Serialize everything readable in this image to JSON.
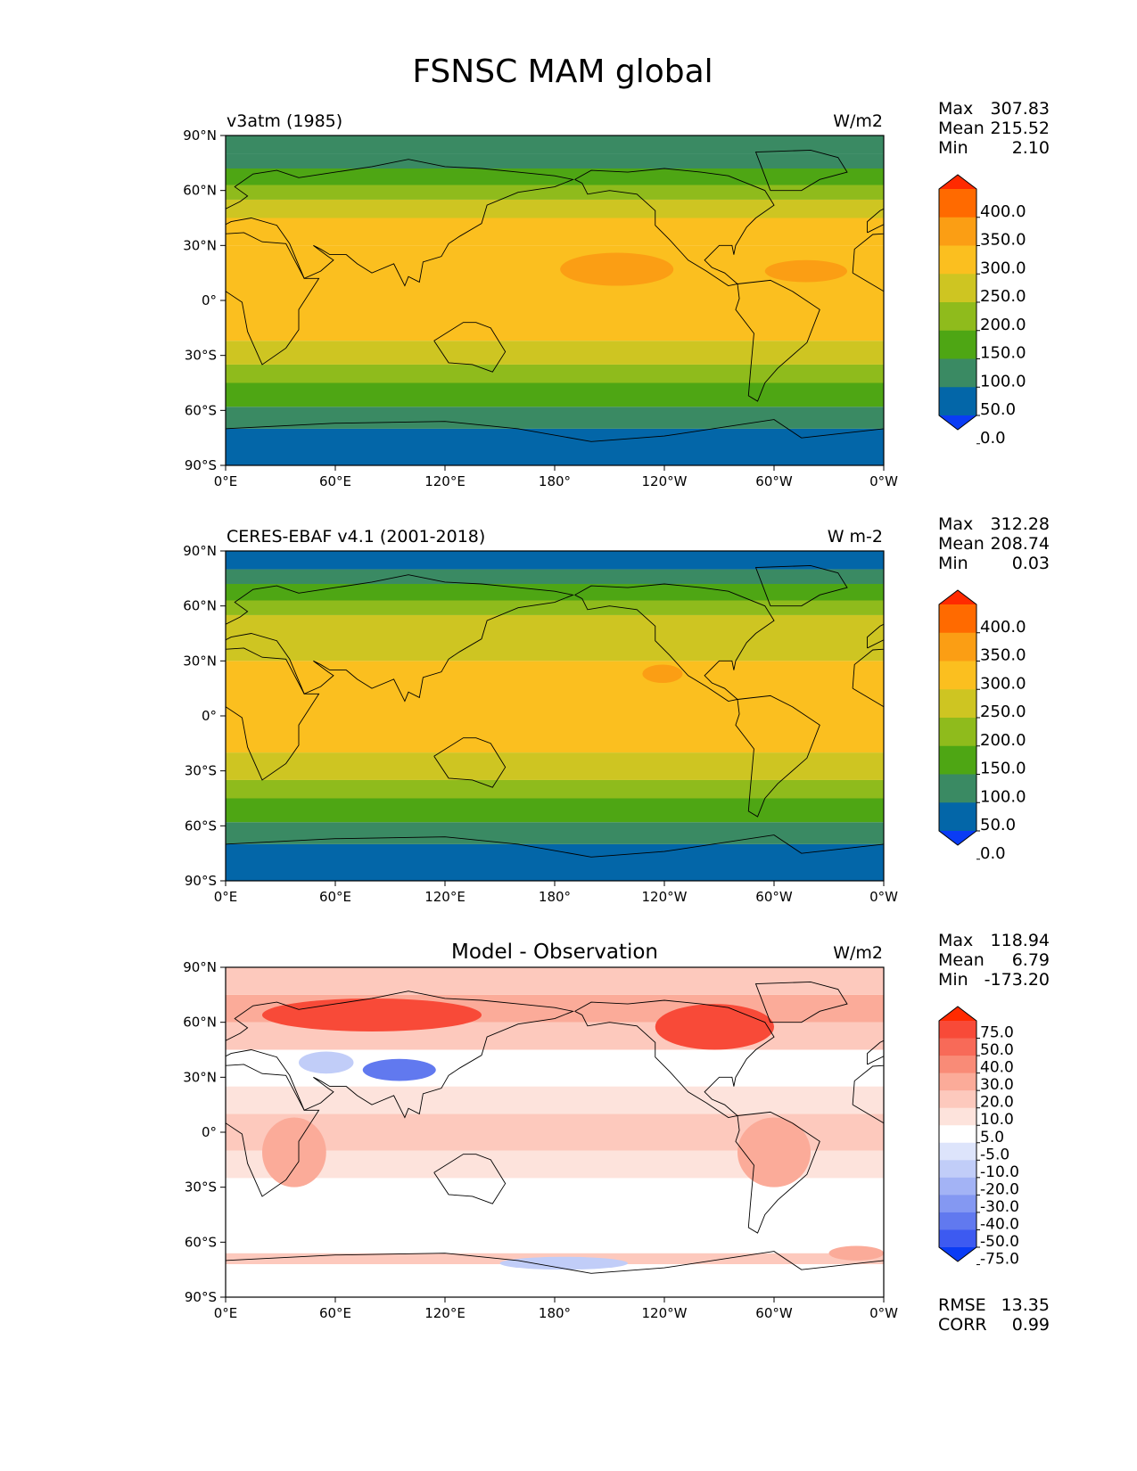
{
  "figure": {
    "title": "FSNSC MAM global"
  },
  "chart_data": [
    {
      "type": "heatmap",
      "name": "model",
      "left_title": "v3atm (1985)",
      "center_title": "",
      "units": "W/m2",
      "xlim": [
        0,
        360
      ],
      "ylim": [
        -90,
        90
      ],
      "x_ticks": [
        "0°E",
        "60°E",
        "120°E",
        "180°",
        "120°W",
        "60°W",
        "0°W"
      ],
      "y_ticks": [
        "90°N",
        "60°N",
        "30°N",
        "0°",
        "30°S",
        "60°S",
        "90°S"
      ],
      "stats": {
        "labels": [
          "Max",
          "Mean",
          "Min"
        ],
        "values": [
          "307.83",
          "215.52",
          "2.10"
        ]
      },
      "colorbar": {
        "levels": [
          "400.0",
          "350.0",
          "300.0",
          "250.0",
          "200.0",
          "150.0",
          "100.0",
          "50.0",
          "0.0"
        ],
        "colors": [
          "#ff2a00",
          "#ff6a00",
          "#fb9e14",
          "#fbbf1f",
          "#cec522",
          "#8fbb1c",
          "#4ea614",
          "#3a8a63",
          "#0366a8",
          "#0a3cf5"
        ]
      },
      "lat_bands": [
        {
          "lat": [
            -90,
            -70
          ],
          "v": 25
        },
        {
          "lat": [
            -70,
            -58
          ],
          "v": 75
        },
        {
          "lat": [
            -58,
            -45
          ],
          "v": 125
        },
        {
          "lat": [
            -45,
            -35
          ],
          "v": 175
        },
        {
          "lat": [
            -35,
            -22
          ],
          "v": 225
        },
        {
          "lat": [
            -22,
            30
          ],
          "v": 275
        },
        {
          "lat": [
            30,
            45
          ],
          "v": 275
        },
        {
          "lat": [
            45,
            55
          ],
          "v": 225
        },
        {
          "lat": [
            55,
            63
          ],
          "v": 175
        },
        {
          "lat": [
            63,
            72
          ],
          "v": 125
        },
        {
          "lat": [
            72,
            80
          ],
          "v": 75
        },
        {
          "lat": [
            80,
            90
          ],
          "v": 75
        }
      ],
      "hotspots": [
        {
          "lon": [
            183,
            245
          ],
          "lat": [
            8,
            26
          ],
          "v": 325
        },
        {
          "lon": [
            295,
            340
          ],
          "lat": [
            10,
            22
          ],
          "v": 325
        }
      ]
    },
    {
      "type": "heatmap",
      "name": "observation",
      "left_title": "CERES-EBAF v4.1 (2001-2018)",
      "center_title": "",
      "units": "W m-2",
      "xlim": [
        0,
        360
      ],
      "ylim": [
        -90,
        90
      ],
      "x_ticks": [
        "0°E",
        "60°E",
        "120°E",
        "180°",
        "120°W",
        "60°W",
        "0°W"
      ],
      "y_ticks": [
        "90°N",
        "60°N",
        "30°N",
        "0°",
        "30°S",
        "60°S",
        "90°S"
      ],
      "stats": {
        "labels": [
          "Max",
          "Mean",
          "Min"
        ],
        "values": [
          "312.28",
          "208.74",
          "0.03"
        ]
      },
      "colorbar": {
        "levels": [
          "400.0",
          "350.0",
          "300.0",
          "250.0",
          "200.0",
          "150.0",
          "100.0",
          "50.0",
          "0.0"
        ],
        "colors": [
          "#ff2a00",
          "#ff6a00",
          "#fb9e14",
          "#fbbf1f",
          "#cec522",
          "#8fbb1c",
          "#4ea614",
          "#3a8a63",
          "#0366a8",
          "#0a3cf5"
        ]
      },
      "lat_bands": [
        {
          "lat": [
            -90,
            -70
          ],
          "v": 25
        },
        {
          "lat": [
            -70,
            -58
          ],
          "v": 75
        },
        {
          "lat": [
            -58,
            -45
          ],
          "v": 125
        },
        {
          "lat": [
            -45,
            -35
          ],
          "v": 175
        },
        {
          "lat": [
            -35,
            -20
          ],
          "v": 225
        },
        {
          "lat": [
            -20,
            30
          ],
          "v": 275
        },
        {
          "lat": [
            30,
            45
          ],
          "v": 225
        },
        {
          "lat": [
            45,
            55
          ],
          "v": 225
        },
        {
          "lat": [
            55,
            63
          ],
          "v": 175
        },
        {
          "lat": [
            63,
            72
          ],
          "v": 125
        },
        {
          "lat": [
            72,
            80
          ],
          "v": 75
        },
        {
          "lat": [
            80,
            90
          ],
          "v": 25
        }
      ],
      "hotspots": [
        {
          "lon": [
            228,
            250
          ],
          "lat": [
            18,
            28
          ],
          "v": 325
        }
      ]
    },
    {
      "type": "heatmap",
      "name": "difference",
      "left_title": "",
      "center_title": "Model - Observation",
      "units": "W/m2",
      "xlim": [
        0,
        360
      ],
      "ylim": [
        -90,
        90
      ],
      "x_ticks": [
        "0°E",
        "60°E",
        "120°E",
        "180°",
        "120°W",
        "60°W",
        "0°W"
      ],
      "y_ticks": [
        "90°N",
        "60°N",
        "30°N",
        "0°",
        "30°S",
        "60°S",
        "90°S"
      ],
      "stats": {
        "labels": [
          "Max",
          "Mean",
          "Min"
        ],
        "values": [
          "118.94",
          "6.79",
          "-173.20"
        ]
      },
      "extra_stats": {
        "labels": [
          "RMSE",
          "CORR"
        ],
        "values": [
          "13.35",
          "0.99"
        ]
      },
      "colorbar": {
        "levels": [
          "75.0",
          "50.0",
          "40.0",
          "30.0",
          "20.0",
          "10.0",
          "5.0",
          "-5.0",
          "-10.0",
          "-20.0",
          "-30.0",
          "-40.0",
          "-50.0",
          "-75.0"
        ],
        "colors": [
          "#ff2a00",
          "#f84a38",
          "#f86a58",
          "#f98b77",
          "#fbab99",
          "#fdc9bd",
          "#fde3dc",
          "#ffffff",
          "#dde4fb",
          "#c1cdf8",
          "#a3b3f5",
          "#8498f2",
          "#6179ef",
          "#3d5af1",
          "#0a3cf5"
        ]
      },
      "lat_bands": [
        {
          "lat": [
            -90,
            -72
          ],
          "v": 0
        },
        {
          "lat": [
            -72,
            -66
          ],
          "v": 15
        },
        {
          "lat": [
            -66,
            -25
          ],
          "v": 0
        },
        {
          "lat": [
            -25,
            -10
          ],
          "v": 7
        },
        {
          "lat": [
            -10,
            10
          ],
          "v": 12
        },
        {
          "lat": [
            10,
            25
          ],
          "v": 7
        },
        {
          "lat": [
            25,
            45
          ],
          "v": 0
        },
        {
          "lat": [
            45,
            60
          ],
          "v": 12
        },
        {
          "lat": [
            60,
            75
          ],
          "v": 25
        },
        {
          "lat": [
            75,
            90
          ],
          "v": 12
        }
      ],
      "hotspots": [
        {
          "lon": [
            20,
            140
          ],
          "lat": [
            55,
            73
          ],
          "v": 55
        },
        {
          "lon": [
            235,
            300
          ],
          "lat": [
            45,
            70
          ],
          "v": 55
        },
        {
          "lon": [
            75,
            115
          ],
          "lat": [
            28,
            40
          ],
          "v": -45
        },
        {
          "lon": [
            40,
            70
          ],
          "lat": [
            32,
            44
          ],
          "v": -12
        },
        {
          "lon": [
            20,
            55
          ],
          "lat": [
            -30,
            8
          ],
          "v": 25
        },
        {
          "lon": [
            280,
            320
          ],
          "lat": [
            -30,
            8
          ],
          "v": 25
        },
        {
          "lon": [
            150,
            220
          ],
          "lat": [
            -75,
            -68
          ],
          "v": -12
        },
        {
          "lon": [
            330,
            360
          ],
          "lat": [
            -70,
            -62
          ],
          "v": 25
        }
      ]
    }
  ]
}
